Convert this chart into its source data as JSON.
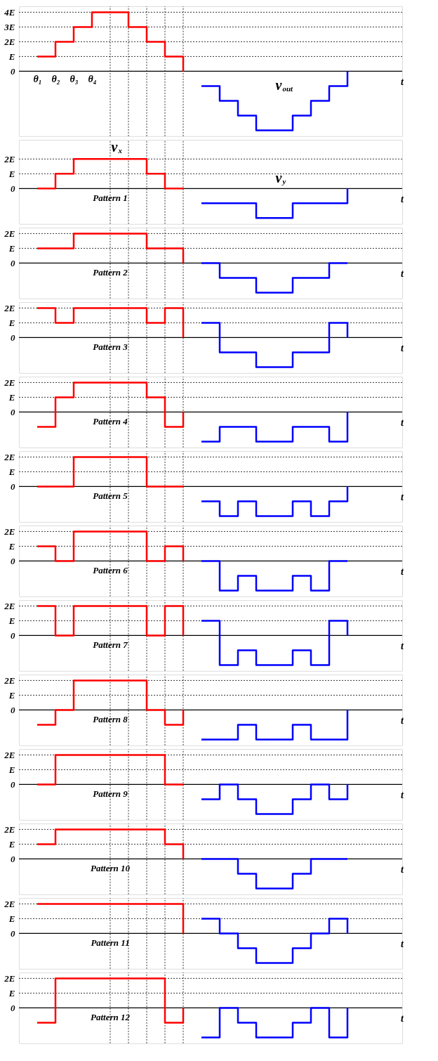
{
  "chart_data": [
    {
      "type": "step",
      "categories": [
        null,
        "θ₁",
        "θ₂",
        "θ₃",
        "θ₄",
        null,
        null,
        null,
        null,
        null,
        null,
        null,
        null,
        null,
        null,
        null,
        null,
        null,
        null,
        null,
        null,
        null
      ],
      "ylim": [
        -4.4,
        4.4
      ],
      "yticks": [
        0,
        {
          "value": 1,
          "label": "E"
        },
        {
          "value": 2,
          "label": "2E"
        },
        {
          "value": 3,
          "label": "3E"
        },
        {
          "value": 4,
          "label": "4E"
        }
      ],
      "xlabel": "t",
      "grid": true,
      "line_style": "solid",
      "series": [
        {
          "color": "#ff0000",
          "values": [
            null,
            1,
            2,
            3,
            4,
            4,
            3,
            2,
            1,
            0,
            null,
            null,
            null,
            null,
            null,
            null,
            null,
            null,
            null,
            null,
            null,
            null
          ]
        },
        {
          "name": "v$_{out}$",
          "color": "#0000ff",
          "values": [
            null,
            null,
            null,
            null,
            null,
            null,
            null,
            null,
            null,
            null,
            -1,
            -2,
            -3,
            -4,
            -4,
            -3,
            -2,
            -1,
            0,
            null,
            null,
            null
          ]
        }
      ]
    },
    {
      "type": "step",
      "categories": [
        null,
        null,
        null,
        null,
        null,
        null,
        null,
        null,
        null,
        null,
        null,
        null,
        null,
        null,
        null,
        null,
        null,
        null,
        null,
        null,
        null,
        null
      ],
      "ylim": [
        -2.4,
        3.3
      ],
      "yticks": [
        0,
        {
          "value": 1,
          "label": "E"
        },
        {
          "value": 2,
          "label": "2E"
        }
      ],
      "xlabel": "t",
      "tick_labels": "y",
      "grid": true,
      "line_style": "solid",
      "annotations": [
        "Pattern 1"
      ],
      "series": [
        {
          "name": "v$_{x}$",
          "color": "#ff0000",
          "values": [
            null,
            0,
            1,
            2,
            2,
            2,
            2,
            1,
            0,
            0,
            null,
            null,
            null,
            null,
            null,
            null,
            null,
            null,
            null,
            null,
            null,
            null
          ]
        },
        {
          "name": "v$_{y}$",
          "color": "#0000ff",
          "values": [
            null,
            null,
            null,
            null,
            null,
            null,
            null,
            null,
            null,
            null,
            -1,
            -1,
            -1,
            -2,
            -2,
            -1,
            -1,
            -1,
            0,
            null,
            null,
            null
          ]
        }
      ]
    },
    {
      "type": "step",
      "categories": [
        null,
        null,
        null,
        null,
        null,
        null,
        null,
        null,
        null,
        null,
        null,
        null,
        null,
        null,
        null,
        null,
        null,
        null,
        null,
        null,
        null,
        null
      ],
      "ylim": [
        -2.4,
        2.4
      ],
      "yticks": [
        0,
        {
          "value": 1,
          "label": "E"
        },
        {
          "value": 2,
          "label": "2E"
        }
      ],
      "xlabel": "t",
      "tick_labels": "y",
      "grid": true,
      "line_style": "solid",
      "annotations": [
        "Pattern 2"
      ],
      "series": [
        {
          "color": "#ff0000",
          "values": [
            null,
            1,
            1,
            2,
            2,
            2,
            2,
            1,
            1,
            0,
            null,
            null,
            null,
            null,
            null,
            null,
            null,
            null,
            null,
            null,
            null,
            null
          ]
        },
        {
          "color": "#0000ff",
          "values": [
            null,
            null,
            null,
            null,
            null,
            null,
            null,
            null,
            null,
            null,
            0,
            -1,
            -1,
            -2,
            -2,
            -1,
            -1,
            0,
            0,
            null,
            null,
            null
          ]
        }
      ]
    },
    {
      "type": "step",
      "categories": [
        null,
        null,
        null,
        null,
        null,
        null,
        null,
        null,
        null,
        null,
        null,
        null,
        null,
        null,
        null,
        null,
        null,
        null,
        null,
        null,
        null,
        null
      ],
      "ylim": [
        -2.4,
        2.4
      ],
      "yticks": [
        0,
        {
          "value": 1,
          "label": "E"
        },
        {
          "value": 2,
          "label": "2E"
        }
      ],
      "xlabel": "t",
      "tick_labels": "y",
      "grid": true,
      "line_style": "solid",
      "annotations": [
        "Pattern 3"
      ],
      "series": [
        {
          "color": "#ff0000",
          "values": [
            null,
            2,
            1,
            2,
            2,
            2,
            2,
            1,
            2,
            0,
            null,
            null,
            null,
            null,
            null,
            null,
            null,
            null,
            null,
            null,
            null,
            null
          ]
        },
        {
          "color": "#0000ff",
          "values": [
            null,
            null,
            null,
            null,
            null,
            null,
            null,
            null,
            null,
            null,
            1,
            -1,
            -1,
            -2,
            -2,
            -1,
            -1,
            1,
            0,
            null,
            null,
            null
          ]
        }
      ]
    },
    {
      "type": "step",
      "categories": [
        null,
        null,
        null,
        null,
        null,
        null,
        null,
        null,
        null,
        null,
        null,
        null,
        null,
        null,
        null,
        null,
        null,
        null,
        null,
        null,
        null,
        null
      ],
      "ylim": [
        -2.4,
        2.4
      ],
      "yticks": [
        0,
        {
          "value": 1,
          "label": "E"
        },
        {
          "value": 2,
          "label": "2E"
        }
      ],
      "xlabel": "t",
      "tick_labels": "y",
      "grid": true,
      "line_style": "solid",
      "annotations": [
        "Pattern 4"
      ],
      "series": [
        {
          "color": "#ff0000",
          "values": [
            null,
            -1,
            1,
            2,
            2,
            2,
            2,
            1,
            -1,
            0,
            null,
            null,
            null,
            null,
            null,
            null,
            null,
            null,
            null,
            null,
            null,
            null
          ]
        },
        {
          "color": "#0000ff",
          "values": [
            null,
            null,
            null,
            null,
            null,
            null,
            null,
            null,
            null,
            null,
            -2,
            -1,
            -1,
            -2,
            -2,
            -1,
            -1,
            -2,
            0,
            null,
            null,
            null
          ]
        }
      ]
    },
    {
      "type": "step",
      "categories": [
        null,
        null,
        null,
        null,
        null,
        null,
        null,
        null,
        null,
        null,
        null,
        null,
        null,
        null,
        null,
        null,
        null,
        null,
        null,
        null,
        null,
        null
      ],
      "ylim": [
        -2.4,
        2.4
      ],
      "yticks": [
        0,
        {
          "value": 1,
          "label": "E"
        },
        {
          "value": 2,
          "label": "2E"
        }
      ],
      "xlabel": "t",
      "tick_labels": "y",
      "grid": true,
      "line_style": "solid",
      "annotations": [
        "Pattern 5"
      ],
      "series": [
        {
          "color": "#ff0000",
          "values": [
            null,
            0,
            0,
            2,
            2,
            2,
            2,
            0,
            0,
            0,
            null,
            null,
            null,
            null,
            null,
            null,
            null,
            null,
            null,
            null,
            null,
            null
          ]
        },
        {
          "color": "#0000ff",
          "values": [
            null,
            null,
            null,
            null,
            null,
            null,
            null,
            null,
            null,
            null,
            -1,
            -2,
            -1,
            -2,
            -2,
            -1,
            -2,
            -1,
            0,
            null,
            null,
            null
          ]
        }
      ]
    },
    {
      "type": "step",
      "categories": [
        null,
        null,
        null,
        null,
        null,
        null,
        null,
        null,
        null,
        null,
        null,
        null,
        null,
        null,
        null,
        null,
        null,
        null,
        null,
        null,
        null,
        null
      ],
      "ylim": [
        -2.4,
        2.4
      ],
      "yticks": [
        0,
        {
          "value": 1,
          "label": "E"
        },
        {
          "value": 2,
          "label": "2E"
        }
      ],
      "xlabel": "t",
      "tick_labels": "y",
      "grid": true,
      "line_style": "solid",
      "annotations": [
        "Pattern 6"
      ],
      "series": [
        {
          "color": "#ff0000",
          "values": [
            null,
            1,
            0,
            2,
            2,
            2,
            2,
            0,
            1,
            0,
            null,
            null,
            null,
            null,
            null,
            null,
            null,
            null,
            null,
            null,
            null,
            null
          ]
        },
        {
          "color": "#0000ff",
          "values": [
            null,
            null,
            null,
            null,
            null,
            null,
            null,
            null,
            null,
            null,
            0,
            -2,
            -1,
            -2,
            -2,
            -1,
            -2,
            0,
            0,
            null,
            null,
            null
          ]
        }
      ]
    },
    {
      "type": "step",
      "categories": [
        null,
        null,
        null,
        null,
        null,
        null,
        null,
        null,
        null,
        null,
        null,
        null,
        null,
        null,
        null,
        null,
        null,
        null,
        null,
        null,
        null,
        null
      ],
      "ylim": [
        -2.4,
        2.4
      ],
      "yticks": [
        0,
        {
          "value": 1,
          "label": "E"
        },
        {
          "value": 2,
          "label": "2E"
        }
      ],
      "xlabel": "t",
      "tick_labels": "y",
      "grid": true,
      "line_style": "solid",
      "annotations": [
        "Pattern 7"
      ],
      "series": [
        {
          "color": "#ff0000",
          "values": [
            null,
            2,
            0,
            2,
            2,
            2,
            2,
            0,
            2,
            0,
            null,
            null,
            null,
            null,
            null,
            null,
            null,
            null,
            null,
            null,
            null,
            null
          ]
        },
        {
          "color": "#0000ff",
          "values": [
            null,
            null,
            null,
            null,
            null,
            null,
            null,
            null,
            null,
            null,
            1,
            -2,
            -1,
            -2,
            -2,
            -1,
            -2,
            1,
            0,
            null,
            null,
            null
          ]
        }
      ]
    },
    {
      "type": "step",
      "categories": [
        null,
        null,
        null,
        null,
        null,
        null,
        null,
        null,
        null,
        null,
        null,
        null,
        null,
        null,
        null,
        null,
        null,
        null,
        null,
        null,
        null,
        null
      ],
      "ylim": [
        -2.4,
        2.4
      ],
      "yticks": [
        0,
        {
          "value": 1,
          "label": "E"
        },
        {
          "value": 2,
          "label": "2E"
        }
      ],
      "xlabel": "t",
      "tick_labels": "y",
      "grid": true,
      "line_style": "solid",
      "annotations": [
        "Pattern 8"
      ],
      "series": [
        {
          "color": "#ff0000",
          "values": [
            null,
            -1,
            0,
            2,
            2,
            2,
            2,
            0,
            -1,
            0,
            null,
            null,
            null,
            null,
            null,
            null,
            null,
            null,
            null,
            null,
            null,
            null
          ]
        },
        {
          "color": "#0000ff",
          "values": [
            null,
            null,
            null,
            null,
            null,
            null,
            null,
            null,
            null,
            null,
            -2,
            -2,
            -1,
            -2,
            -2,
            -1,
            -2,
            -2,
            0,
            null,
            null,
            null
          ]
        }
      ]
    },
    {
      "type": "step",
      "categories": [
        null,
        null,
        null,
        null,
        null,
        null,
        null,
        null,
        null,
        null,
        null,
        null,
        null,
        null,
        null,
        null,
        null,
        null,
        null,
        null,
        null,
        null
      ],
      "ylim": [
        -2.4,
        2.4
      ],
      "yticks": [
        0,
        {
          "value": 1,
          "label": "E"
        },
        {
          "value": 2,
          "label": "2E"
        }
      ],
      "xlabel": "t",
      "tick_labels": "y",
      "grid": true,
      "line_style": "solid",
      "annotations": [
        "Pattern 9"
      ],
      "series": [
        {
          "color": "#ff0000",
          "values": [
            null,
            0,
            2,
            2,
            2,
            2,
            2,
            2,
            0,
            0,
            null,
            null,
            null,
            null,
            null,
            null,
            null,
            null,
            null,
            null,
            null,
            null
          ]
        },
        {
          "color": "#0000ff",
          "values": [
            null,
            null,
            null,
            null,
            null,
            null,
            null,
            null,
            null,
            null,
            -1,
            0,
            -1,
            -2,
            -2,
            -1,
            0,
            -1,
            0,
            null,
            null,
            null
          ]
        }
      ]
    },
    {
      "type": "step",
      "categories": [
        null,
        null,
        null,
        null,
        null,
        null,
        null,
        null,
        null,
        null,
        null,
        null,
        null,
        null,
        null,
        null,
        null,
        null,
        null,
        null,
        null,
        null
      ],
      "ylim": [
        -2.4,
        2.4
      ],
      "yticks": [
        0,
        {
          "value": 1,
          "label": "E"
        },
        {
          "value": 2,
          "label": "2E"
        }
      ],
      "xlabel": "t",
      "tick_labels": "y",
      "grid": true,
      "line_style": "solid",
      "annotations": [
        "Pattern 10"
      ],
      "series": [
        {
          "color": "#ff0000",
          "values": [
            null,
            1,
            2,
            2,
            2,
            2,
            2,
            2,
            1,
            0,
            null,
            null,
            null,
            null,
            null,
            null,
            null,
            null,
            null,
            null,
            null,
            null
          ]
        },
        {
          "color": "#0000ff",
          "values": [
            null,
            null,
            null,
            null,
            null,
            null,
            null,
            null,
            null,
            null,
            0,
            0,
            -1,
            -2,
            -2,
            -1,
            0,
            0,
            0,
            null,
            null,
            null
          ]
        }
      ]
    },
    {
      "type": "step",
      "categories": [
        null,
        null,
        null,
        null,
        null,
        null,
        null,
        null,
        null,
        null,
        null,
        null,
        null,
        null,
        null,
        null,
        null,
        null,
        null,
        null,
        null,
        null
      ],
      "ylim": [
        -2.4,
        2.4
      ],
      "yticks": [
        0,
        {
          "value": 1,
          "label": "E"
        },
        {
          "value": 2,
          "label": "2E"
        }
      ],
      "xlabel": "t",
      "tick_labels": "y",
      "grid": true,
      "line_style": "solid",
      "annotations": [
        "Pattern 11"
      ],
      "series": [
        {
          "color": "#ff0000",
          "values": [
            null,
            2,
            2,
            2,
            2,
            2,
            2,
            2,
            2,
            0,
            null,
            null,
            null,
            null,
            null,
            null,
            null,
            null,
            null,
            null,
            null,
            null
          ]
        },
        {
          "color": "#0000ff",
          "values": [
            null,
            null,
            null,
            null,
            null,
            null,
            null,
            null,
            null,
            null,
            1,
            0,
            -1,
            -2,
            -2,
            -1,
            0,
            1,
            0,
            null,
            null,
            null
          ]
        }
      ]
    },
    {
      "type": "step",
      "categories": [
        null,
        null,
        null,
        null,
        null,
        null,
        null,
        null,
        null,
        null,
        null,
        null,
        null,
        null,
        null,
        null,
        null,
        null,
        null,
        null,
        null,
        null
      ],
      "ylim": [
        -2.4,
        2.4
      ],
      "yticks": [
        0,
        {
          "value": 1,
          "label": "E"
        },
        {
          "value": 2,
          "label": "2E"
        }
      ],
      "xlabel": "t",
      "tick_labels": "y",
      "grid": true,
      "line_style": "solid",
      "annotations": [
        "Pattern 12"
      ],
      "series": [
        {
          "color": "#ff0000",
          "values": [
            null,
            -1,
            2,
            2,
            2,
            2,
            2,
            2,
            -1,
            0,
            null,
            null,
            null,
            null,
            null,
            null,
            null,
            null,
            null,
            null,
            null,
            null
          ]
        },
        {
          "color": "#0000ff",
          "values": [
            null,
            null,
            null,
            null,
            null,
            null,
            null,
            null,
            null,
            null,
            -2,
            0,
            -1,
            -2,
            -2,
            -1,
            0,
            -2,
            0,
            null,
            null,
            null
          ]
        }
      ]
    }
  ]
}
